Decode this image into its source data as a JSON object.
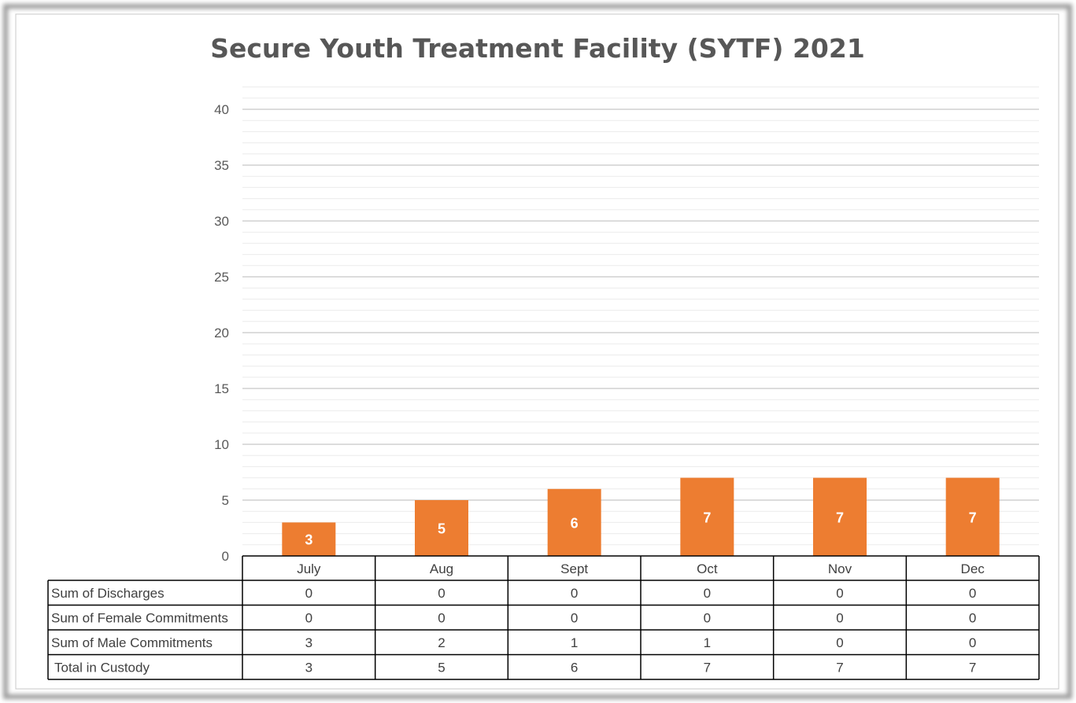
{
  "chart_data": {
    "type": "bar",
    "title": "Secure Youth Treatment Facility (SYTF) 2021",
    "categories": [
      "July",
      "Aug",
      "Sept",
      "Oct",
      "Nov",
      "Dec"
    ],
    "series": [
      {
        "name": "Total in Custody",
        "values": [
          3,
          5,
          6,
          7,
          7,
          7
        ]
      }
    ],
    "data_labels": [
      "3",
      "5",
      "6",
      "7",
      "7",
      "7"
    ],
    "y_ticks": [
      "0",
      "5",
      "10",
      "15",
      "20",
      "25",
      "30",
      "35",
      "40"
    ],
    "ylim": [
      0,
      42
    ],
    "major_step": 5,
    "minor_step": 1,
    "grid": true,
    "bar_color": "#ED7D31",
    "data_table": {
      "rows": [
        {
          "label": "Sum of Discharges",
          "values": [
            "0",
            "0",
            "0",
            "0",
            "0",
            "0"
          ]
        },
        {
          "label": "Sum of Female Commitments",
          "values": [
            "0",
            "0",
            "0",
            "0",
            "0",
            "0"
          ]
        },
        {
          "label": "Sum of Male Commitments",
          "values": [
            "3",
            "2",
            "1",
            "1",
            "0",
            "0"
          ]
        },
        {
          "label": "Total in Custody",
          "values": [
            "3",
            "5",
            "6",
            "7",
            "7",
            "7"
          ]
        }
      ]
    }
  }
}
